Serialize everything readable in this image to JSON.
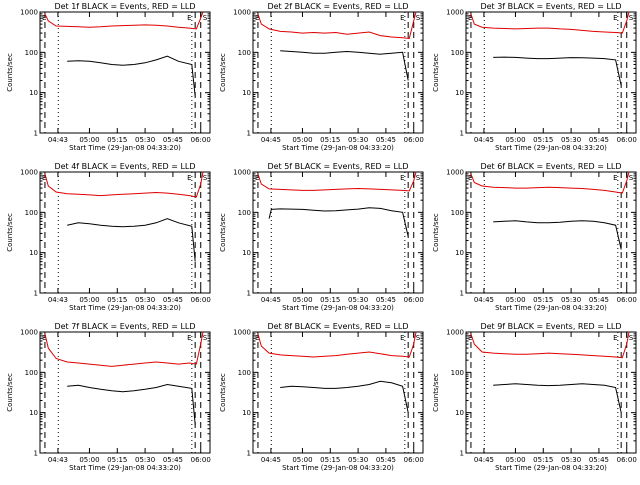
{
  "common": {
    "xlabel": "Start Time (29-Jan-08 04:33:20)",
    "ylabel": "Counts/sec",
    "ylog": true,
    "ylim": [
      1,
      1000
    ],
    "ytick_labels": [
      "1",
      "10",
      "100",
      "1000"
    ],
    "xlim_hours": [
      4.5556,
      6.0833
    ],
    "series_colors": {
      "events": "#000000",
      "lld": "#e00000"
    },
    "marker_letters": [
      "E",
      "S"
    ]
  },
  "chart_data": [
    {
      "type": "line",
      "title": "Det 1f BLACK = Events, RED = LLD",
      "x_tick_labels": [
        "04:43",
        "05:00",
        "05:15",
        "05:30",
        "05:45",
        "06:00"
      ],
      "series": [
        {
          "name": "BLACK = Events",
          "x": [
            4.8,
            4.9,
            5.0,
            5.1,
            5.2,
            5.3,
            5.4,
            5.5,
            5.6,
            5.7,
            5.8,
            5.92,
            5.95
          ],
          "y": [
            60,
            62,
            60,
            55,
            50,
            48,
            50,
            55,
            65,
            80,
            60,
            50,
            8
          ]
        },
        {
          "name": "RED = LLD",
          "x": [
            4.6,
            4.63,
            4.7,
            4.8,
            4.9,
            5.0,
            5.1,
            5.2,
            5.3,
            5.4,
            5.5,
            5.6,
            5.7,
            5.8,
            5.9,
            5.96,
            6.0,
            6.02
          ],
          "y": [
            900,
            600,
            450,
            440,
            430,
            420,
            430,
            450,
            460,
            470,
            480,
            470,
            450,
            420,
            400,
            380,
            700,
            1000
          ]
        }
      ]
    },
    {
      "type": "line",
      "title": "Det 2f BLACK = Events, RED = LLD",
      "x_tick_labels": [
        "04:45",
        "05:00",
        "05:15",
        "05:30",
        "05:45",
        "06:00"
      ],
      "series": [
        {
          "name": "BLACK = Events",
          "x": [
            4.8,
            4.9,
            5.0,
            5.1,
            5.2,
            5.3,
            5.4,
            5.5,
            5.6,
            5.7,
            5.8,
            5.9,
            5.95
          ],
          "y": [
            110,
            105,
            100,
            95,
            95,
            100,
            105,
            100,
            95,
            90,
            95,
            100,
            20
          ]
        },
        {
          "name": "RED = LLD",
          "x": [
            4.6,
            4.63,
            4.7,
            4.8,
            4.9,
            5.0,
            5.1,
            5.2,
            5.3,
            5.4,
            5.5,
            5.6,
            5.7,
            5.8,
            5.9,
            5.96,
            6.0,
            6.02
          ],
          "y": [
            900,
            500,
            380,
            330,
            320,
            300,
            310,
            300,
            310,
            280,
            300,
            320,
            260,
            240,
            230,
            220,
            600,
            1000
          ]
        }
      ]
    },
    {
      "type": "line",
      "title": "Det 3f BLACK = Events, RED = LLD",
      "x_tick_labels": [
        "04:45",
        "05:00",
        "05:15",
        "05:30",
        "05:45",
        "06:00"
      ],
      "series": [
        {
          "name": "BLACK = Events",
          "x": [
            4.8,
            4.9,
            5.0,
            5.1,
            5.2,
            5.3,
            5.4,
            5.5,
            5.6,
            5.7,
            5.8,
            5.9,
            5.95
          ],
          "y": [
            75,
            76,
            75,
            72,
            70,
            70,
            72,
            74,
            73,
            72,
            70,
            65,
            15
          ]
        },
        {
          "name": "RED = LLD",
          "x": [
            4.6,
            4.63,
            4.7,
            4.8,
            4.9,
            5.0,
            5.1,
            5.2,
            5.3,
            5.4,
            5.5,
            5.6,
            5.7,
            5.8,
            5.9,
            5.96,
            6.0,
            6.02
          ],
          "y": [
            900,
            500,
            420,
            400,
            390,
            380,
            390,
            400,
            400,
            380,
            370,
            350,
            330,
            320,
            310,
            300,
            600,
            1000
          ]
        }
      ]
    },
    {
      "type": "line",
      "title": "Det 4f BLACK = Events, RED = LLD",
      "x_tick_labels": [
        "04:43",
        "05:00",
        "05:15",
        "05:30",
        "05:45",
        "06:00"
      ],
      "series": [
        {
          "name": "BLACK = Events",
          "x": [
            4.8,
            4.9,
            5.0,
            5.1,
            5.2,
            5.3,
            5.4,
            5.5,
            5.6,
            5.7,
            5.8,
            5.92,
            5.95
          ],
          "y": [
            48,
            55,
            52,
            48,
            45,
            44,
            45,
            48,
            55,
            70,
            55,
            45,
            6
          ]
        },
        {
          "name": "RED = LLD",
          "x": [
            4.6,
            4.63,
            4.7,
            4.8,
            4.9,
            5.0,
            5.1,
            5.2,
            5.3,
            5.4,
            5.5,
            5.6,
            5.7,
            5.8,
            5.9,
            5.96,
            6.0,
            6.02
          ],
          "y": [
            900,
            450,
            320,
            290,
            280,
            270,
            260,
            270,
            280,
            290,
            300,
            310,
            300,
            280,
            260,
            240,
            500,
            1000
          ]
        }
      ]
    },
    {
      "type": "line",
      "title": "Det 5f BLACK = Events, RED = LLD",
      "x_tick_labels": [
        "04:45",
        "05:00",
        "05:15",
        "05:30",
        "05:45",
        "06:00"
      ],
      "series": [
        {
          "name": "BLACK = Events",
          "x": [
            4.7,
            4.72,
            4.8,
            4.9,
            5.0,
            5.1,
            5.2,
            5.3,
            5.4,
            5.5,
            5.6,
            5.7,
            5.8,
            5.9,
            5.95
          ],
          "y": [
            70,
            118,
            122,
            120,
            118,
            112,
            108,
            110,
            115,
            120,
            130,
            125,
            110,
            100,
            25
          ]
        },
        {
          "name": "RED = LLD",
          "x": [
            4.6,
            4.63,
            4.7,
            4.8,
            4.9,
            5.0,
            5.1,
            5.2,
            5.3,
            5.4,
            5.5,
            5.6,
            5.7,
            5.8,
            5.9,
            5.96,
            6.0,
            6.02
          ],
          "y": [
            900,
            500,
            380,
            370,
            360,
            350,
            350,
            360,
            370,
            380,
            390,
            380,
            370,
            360,
            350,
            340,
            600,
            1000
          ]
        }
      ]
    },
    {
      "type": "line",
      "title": "Det 6f BLACK = Events, RED = LLD",
      "x_tick_labels": [
        "04:45",
        "05:00",
        "05:15",
        "05:30",
        "05:45",
        "06:00"
      ],
      "series": [
        {
          "name": "BLACK = Events",
          "x": [
            4.8,
            4.9,
            5.0,
            5.1,
            5.2,
            5.3,
            5.4,
            5.5,
            5.6,
            5.7,
            5.8,
            5.9,
            5.95
          ],
          "y": [
            58,
            60,
            62,
            58,
            55,
            55,
            57,
            60,
            62,
            60,
            55,
            48,
            12
          ]
        },
        {
          "name": "RED = LLD",
          "x": [
            4.6,
            4.63,
            4.7,
            4.8,
            4.9,
            5.0,
            5.1,
            5.2,
            5.3,
            5.4,
            5.5,
            5.6,
            5.7,
            5.8,
            5.9,
            5.96,
            6.0,
            6.02
          ],
          "y": [
            900,
            550,
            450,
            420,
            410,
            400,
            400,
            410,
            420,
            410,
            400,
            390,
            370,
            350,
            320,
            300,
            600,
            1000
          ]
        }
      ]
    },
    {
      "type": "line",
      "title": "Det 7f BLACK = Events, RED = LLD",
      "x_tick_labels": [
        "04:43",
        "05:00",
        "05:15",
        "05:30",
        "05:45",
        "06:00"
      ],
      "series": [
        {
          "name": "BLACK = Events",
          "x": [
            4.8,
            4.9,
            5.0,
            5.1,
            5.2,
            5.3,
            5.4,
            5.5,
            5.6,
            5.7,
            5.8,
            5.92,
            5.95
          ],
          "y": [
            45,
            48,
            42,
            38,
            35,
            33,
            35,
            38,
            42,
            50,
            45,
            40,
            5
          ]
        },
        {
          "name": "RED = LLD",
          "x": [
            4.6,
            4.63,
            4.7,
            4.8,
            4.9,
            5.0,
            5.1,
            5.2,
            5.3,
            5.4,
            5.5,
            5.6,
            5.7,
            5.8,
            5.9,
            5.96,
            6.0,
            6.02
          ],
          "y": [
            900,
            400,
            220,
            180,
            170,
            160,
            150,
            140,
            150,
            160,
            170,
            180,
            170,
            160,
            170,
            160,
            500,
            1000
          ]
        }
      ]
    },
    {
      "type": "line",
      "title": "Det 8f BLACK = Events, RED = LLD",
      "x_tick_labels": [
        "04:45",
        "05:00",
        "05:15",
        "05:30",
        "05:45",
        "06:00"
      ],
      "series": [
        {
          "name": "BLACK = Events",
          "x": [
            4.8,
            4.9,
            5.0,
            5.1,
            5.2,
            5.3,
            5.4,
            5.5,
            5.6,
            5.7,
            5.8,
            5.9,
            5.95
          ],
          "y": [
            42,
            45,
            44,
            42,
            40,
            40,
            42,
            45,
            50,
            60,
            55,
            45,
            10
          ]
        },
        {
          "name": "RED = LLD",
          "x": [
            4.6,
            4.63,
            4.7,
            4.8,
            4.9,
            5.0,
            5.1,
            5.2,
            5.3,
            5.4,
            5.5,
            5.6,
            5.7,
            5.8,
            5.9,
            5.96,
            6.0,
            6.02
          ],
          "y": [
            900,
            450,
            300,
            270,
            260,
            250,
            240,
            250,
            260,
            280,
            300,
            320,
            290,
            260,
            250,
            240,
            500,
            1000
          ]
        }
      ]
    },
    {
      "type": "line",
      "title": "Det 9f BLACK = Events, RED = LLD",
      "x_tick_labels": [
        "04:45",
        "05:00",
        "05:15",
        "05:30",
        "05:45",
        "06:00"
      ],
      "series": [
        {
          "name": "BLACK = Events",
          "x": [
            4.8,
            4.9,
            5.0,
            5.1,
            5.2,
            5.3,
            5.4,
            5.5,
            5.6,
            5.7,
            5.8,
            5.9,
            5.95
          ],
          "y": [
            48,
            50,
            52,
            50,
            48,
            47,
            48,
            50,
            52,
            50,
            48,
            42,
            10
          ]
        },
        {
          "name": "RED = LLD",
          "x": [
            4.6,
            4.63,
            4.7,
            4.8,
            4.9,
            5.0,
            5.1,
            5.2,
            5.3,
            5.4,
            5.5,
            5.6,
            5.7,
            5.8,
            5.9,
            5.96,
            6.0,
            6.02
          ],
          "y": [
            900,
            500,
            320,
            300,
            290,
            280,
            280,
            290,
            300,
            290,
            280,
            270,
            260,
            250,
            240,
            230,
            500,
            1000
          ]
        }
      ]
    }
  ]
}
